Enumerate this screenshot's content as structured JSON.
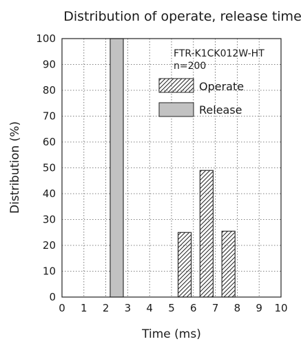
{
  "chart_data": {
    "type": "bar",
    "title": "Distribution of operate, release time",
    "xlabel": "Time (ms)",
    "ylabel": "Distribution (%)",
    "xlim": [
      0,
      10
    ],
    "ylim": [
      0,
      100
    ],
    "x_ticks": [
      "0",
      "1",
      "2",
      "3",
      "4",
      "5",
      "6",
      "7",
      "8",
      "9",
      "10"
    ],
    "y_ticks": [
      "0",
      "10",
      "20",
      "30",
      "40",
      "50",
      "60",
      "70",
      "80",
      "90",
      "100"
    ],
    "grid": true,
    "annotation": {
      "line1": "FTR-K1CK012W-HT",
      "line2": "n=200"
    },
    "legend_placement": "top-right",
    "series": [
      {
        "name": "Operate",
        "style": "hatched",
        "bars": [
          {
            "x0": 5.3,
            "x1": 5.9,
            "value": 25
          },
          {
            "x0": 6.3,
            "x1": 6.9,
            "value": 49
          },
          {
            "x0": 7.3,
            "x1": 7.9,
            "value": 25.5
          }
        ]
      },
      {
        "name": "Release",
        "style": "filled",
        "color": "#c2c2c2",
        "bars": [
          {
            "x0": 2.2,
            "x1": 2.8,
            "value": 100
          }
        ]
      }
    ]
  }
}
